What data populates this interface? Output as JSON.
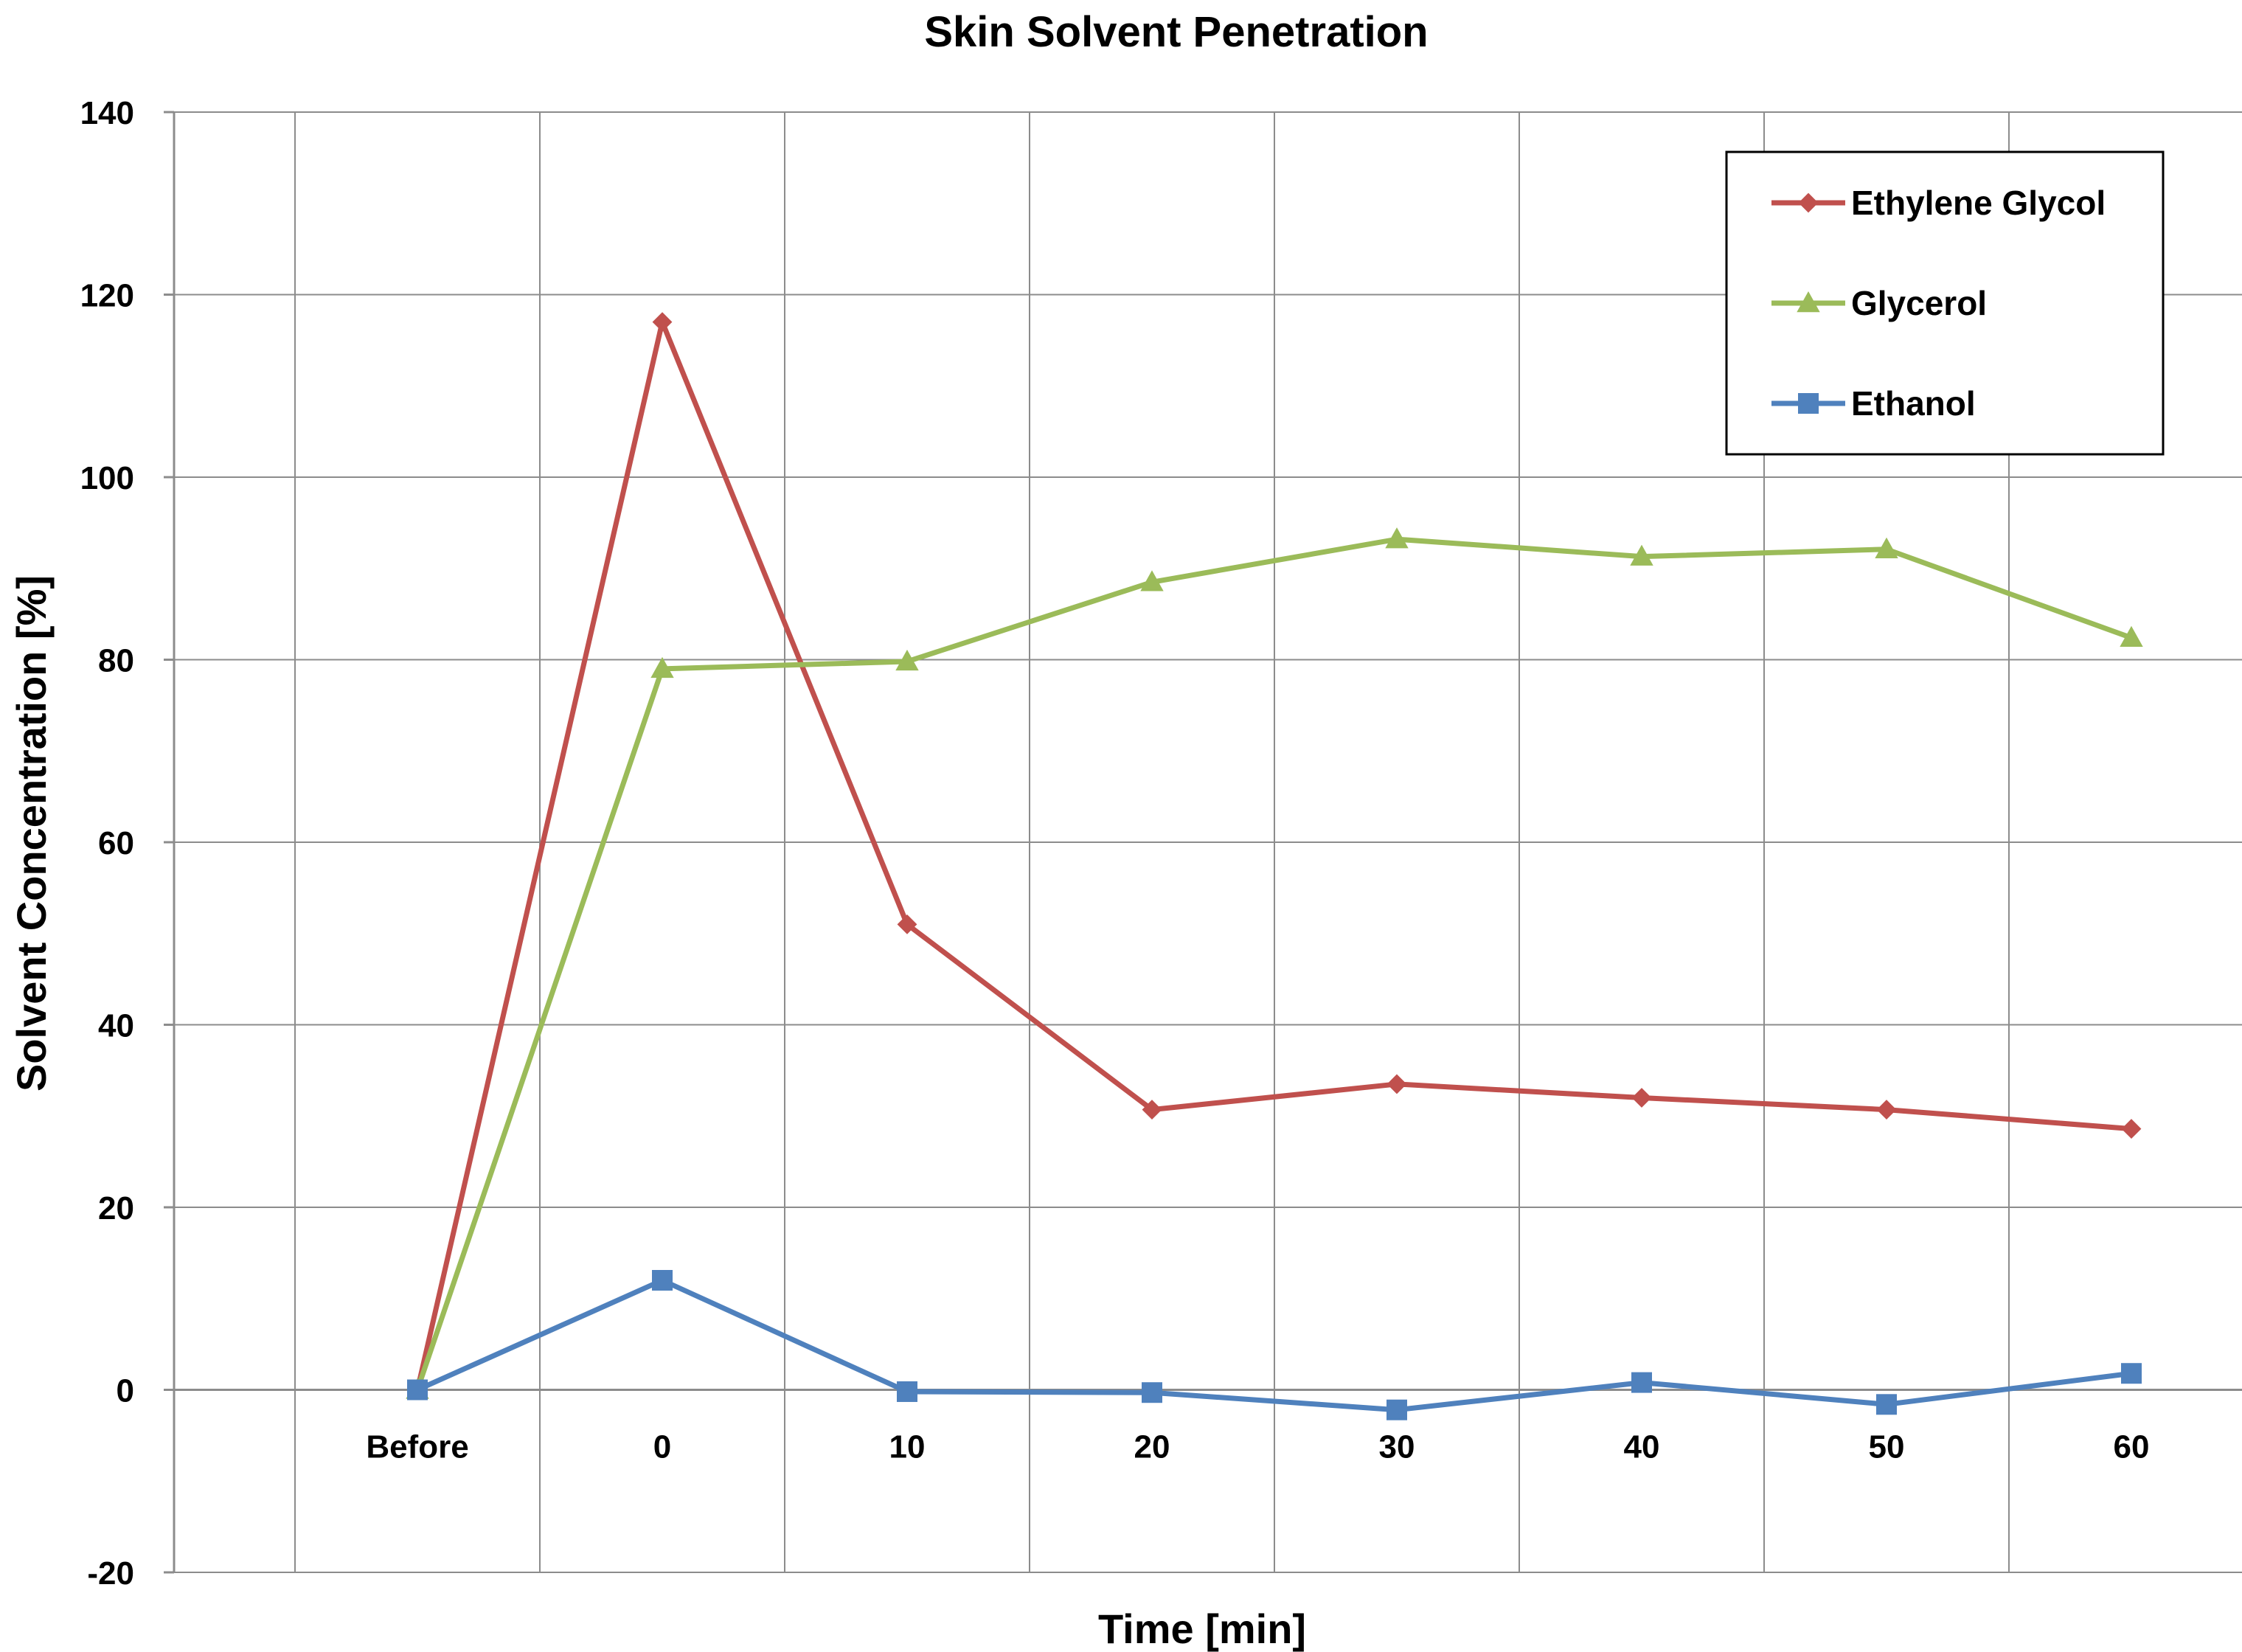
{
  "chart_data": {
    "type": "line",
    "title": "Skin Solvent Penetration",
    "xlabel": "Time [min]",
    "ylabel": "Solvent Concentration [%]",
    "categories": [
      "Before",
      "0",
      "10",
      "20",
      "30",
      "40",
      "50",
      "60"
    ],
    "ylim": [
      -20,
      140
    ],
    "yticks": [
      "140",
      "120",
      "100",
      "80",
      "60",
      "40",
      "20",
      "0",
      "-20"
    ],
    "ytick_values": [
      140,
      120,
      100,
      80,
      60,
      40,
      20,
      0,
      -20
    ],
    "grid": true,
    "legend_position": "top-right",
    "series": [
      {
        "name": "Ethylene Glycol",
        "color": "#C0504D",
        "marker": "diamond",
        "values": [
          0,
          117,
          51,
          30.7,
          33.5,
          32,
          30.7,
          28.6
        ]
      },
      {
        "name": "Glycerol",
        "color": "#9BBB59",
        "marker": "triangle",
        "values": [
          0,
          79,
          79.8,
          88.5,
          93.2,
          91.3,
          92.1,
          82.4
        ]
      },
      {
        "name": "Ethanol",
        "color": "#4F81BD",
        "marker": "square",
        "values": [
          0,
          12,
          -0.2,
          -0.3,
          -2.2,
          0.8,
          -1.6,
          1.8
        ]
      }
    ]
  }
}
